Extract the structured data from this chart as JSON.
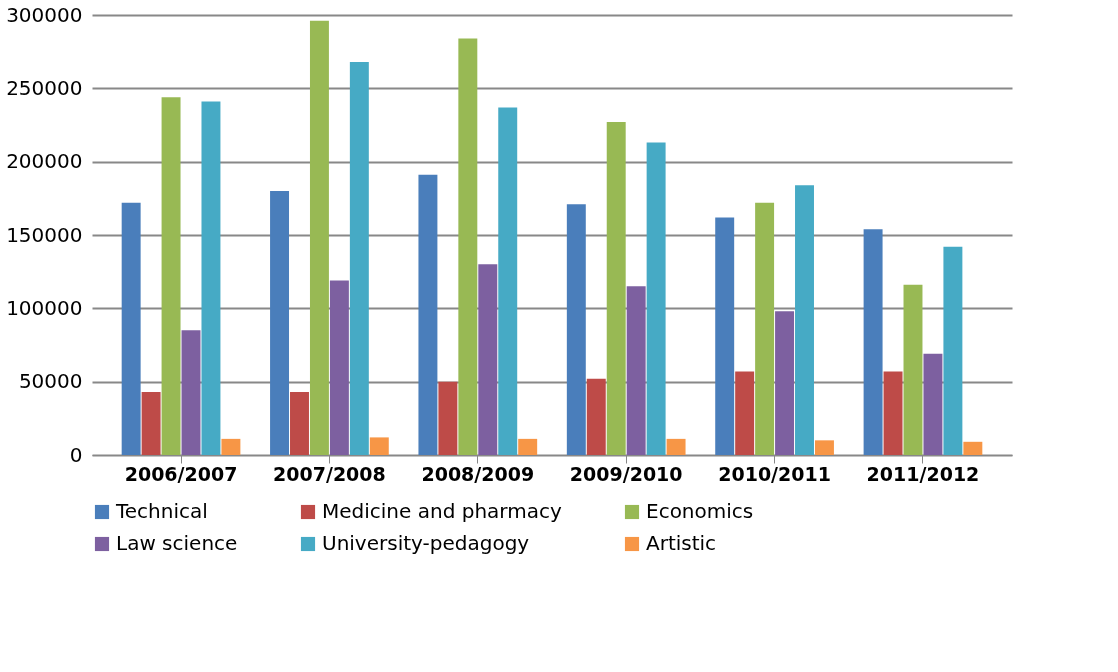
{
  "chart_data": {
    "type": "bar",
    "categories": [
      "2006/2007",
      "2007/2008",
      "2008/2009",
      "2009/2010",
      "2010/2011",
      "2011/2012"
    ],
    "series": [
      {
        "name": "Technical",
        "color": "#4a7ebb",
        "values": [
          172000,
          180000,
          191000,
          171000,
          162000,
          154000
        ]
      },
      {
        "name": "Medicine and pharmacy",
        "color": "#be4b48",
        "values": [
          43000,
          43000,
          50000,
          52000,
          57000,
          57000
        ]
      },
      {
        "name": "Economics",
        "color": "#98b954",
        "values": [
          244000,
          296000,
          284000,
          227000,
          172000,
          116000
        ]
      },
      {
        "name": "Law science",
        "color": "#7d60a0",
        "values": [
          85000,
          119000,
          130000,
          115000,
          98000,
          69000
        ]
      },
      {
        "name": "University-pedagogy",
        "color": "#46aac5",
        "values": [
          241000,
          268000,
          237000,
          213000,
          184000,
          142000
        ]
      },
      {
        "name": "Artistic",
        "color": "#f79646",
        "values": [
          11000,
          12000,
          11000,
          11000,
          10000,
          9000
        ]
      }
    ],
    "ylim": [
      0,
      300000
    ],
    "yticks": [
      0,
      50000,
      100000,
      150000,
      200000,
      250000,
      300000
    ],
    "grid": "y",
    "legend": "bottom"
  }
}
